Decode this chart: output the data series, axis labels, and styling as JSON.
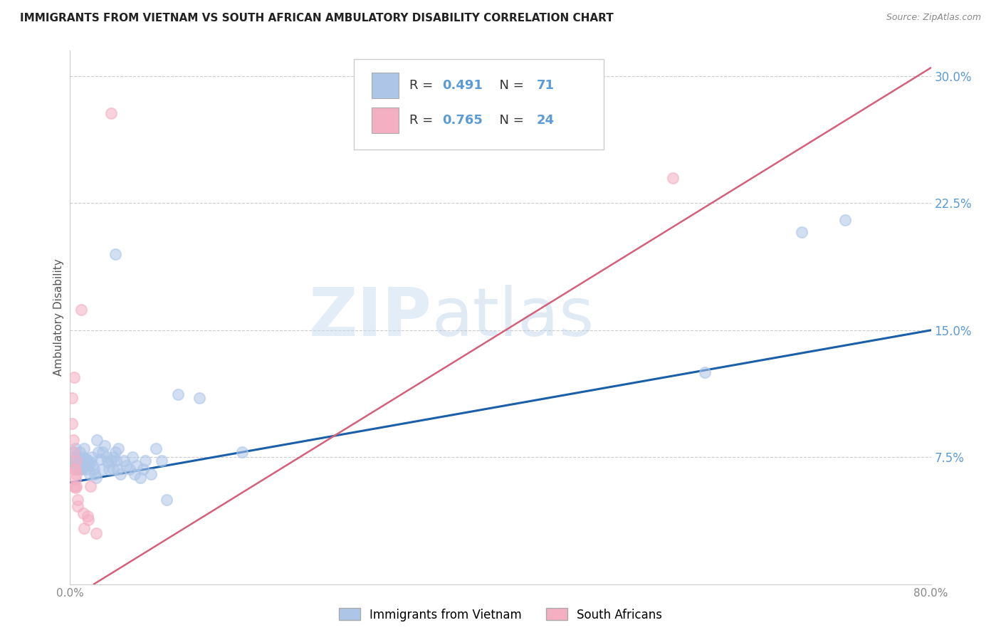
{
  "title": "IMMIGRANTS FROM VIETNAM VS SOUTH AFRICAN AMBULATORY DISABILITY CORRELATION CHART",
  "source": "Source: ZipAtlas.com",
  "ylabel": "Ambulatory Disability",
  "xmin": 0.0,
  "xmax": 0.8,
  "ymin": 0.0,
  "ymax": 0.315,
  "yticks": [
    0.075,
    0.15,
    0.225,
    0.3
  ],
  "ytick_labels": [
    "7.5%",
    "15.0%",
    "22.5%",
    "30.0%"
  ],
  "xticks": [
    0.0,
    0.2,
    0.4,
    0.6,
    0.8
  ],
  "xtick_labels": [
    "0.0%",
    "",
    "",
    "",
    "80.0%"
  ],
  "legend_top": [
    {
      "label_r": "R = ",
      "r_val": "0.491",
      "label_n": "  N = ",
      "n_val": "71",
      "color": "#adc6e8"
    },
    {
      "label_r": "R = ",
      "r_val": "0.765",
      "label_n": "  N = ",
      "n_val": "24",
      "color": "#f4afc3"
    }
  ],
  "legend_bottom": [
    {
      "label": "Immigrants from Vietnam",
      "color": "#adc6e8"
    },
    {
      "label": "South Africans",
      "color": "#f4afc3"
    }
  ],
  "blue_scatter": [
    [
      0.003,
      0.078
    ],
    [
      0.004,
      0.075
    ],
    [
      0.004,
      0.072
    ],
    [
      0.005,
      0.08
    ],
    [
      0.005,
      0.073
    ],
    [
      0.005,
      0.07
    ],
    [
      0.006,
      0.075
    ],
    [
      0.006,
      0.069
    ],
    [
      0.007,
      0.073
    ],
    [
      0.007,
      0.068
    ],
    [
      0.008,
      0.074
    ],
    [
      0.008,
      0.071
    ],
    [
      0.009,
      0.078
    ],
    [
      0.009,
      0.068
    ],
    [
      0.01,
      0.074
    ],
    [
      0.01,
      0.072
    ],
    [
      0.011,
      0.073
    ],
    [
      0.011,
      0.068
    ],
    [
      0.012,
      0.075
    ],
    [
      0.012,
      0.069
    ],
    [
      0.013,
      0.08
    ],
    [
      0.013,
      0.07
    ],
    [
      0.014,
      0.072
    ],
    [
      0.015,
      0.074
    ],
    [
      0.015,
      0.068
    ],
    [
      0.016,
      0.073
    ],
    [
      0.017,
      0.07
    ],
    [
      0.018,
      0.065
    ],
    [
      0.019,
      0.072
    ],
    [
      0.02,
      0.075
    ],
    [
      0.021,
      0.07
    ],
    [
      0.022,
      0.068
    ],
    [
      0.023,
      0.065
    ],
    [
      0.024,
      0.063
    ],
    [
      0.025,
      0.085
    ],
    [
      0.026,
      0.078
    ],
    [
      0.028,
      0.074
    ],
    [
      0.03,
      0.078
    ],
    [
      0.03,
      0.068
    ],
    [
      0.032,
      0.082
    ],
    [
      0.034,
      0.075
    ],
    [
      0.035,
      0.072
    ],
    [
      0.036,
      0.068
    ],
    [
      0.038,
      0.073
    ],
    [
      0.04,
      0.068
    ],
    [
      0.04,
      0.075
    ],
    [
      0.042,
      0.078
    ],
    [
      0.043,
      0.073
    ],
    [
      0.044,
      0.068
    ],
    [
      0.045,
      0.08
    ],
    [
      0.047,
      0.065
    ],
    [
      0.05,
      0.073
    ],
    [
      0.052,
      0.07
    ],
    [
      0.055,
      0.068
    ],
    [
      0.058,
      0.075
    ],
    [
      0.06,
      0.065
    ],
    [
      0.062,
      0.07
    ],
    [
      0.065,
      0.063
    ],
    [
      0.068,
      0.068
    ],
    [
      0.07,
      0.073
    ],
    [
      0.075,
      0.065
    ],
    [
      0.08,
      0.08
    ],
    [
      0.085,
      0.073
    ],
    [
      0.09,
      0.05
    ],
    [
      0.042,
      0.195
    ],
    [
      0.1,
      0.112
    ],
    [
      0.12,
      0.11
    ],
    [
      0.16,
      0.078
    ],
    [
      0.59,
      0.125
    ],
    [
      0.68,
      0.208
    ],
    [
      0.72,
      0.215
    ]
  ],
  "pink_scatter": [
    [
      0.002,
      0.11
    ],
    [
      0.002,
      0.095
    ],
    [
      0.003,
      0.085
    ],
    [
      0.003,
      0.078
    ],
    [
      0.004,
      0.122
    ],
    [
      0.004,
      0.068
    ],
    [
      0.004,
      0.058
    ],
    [
      0.005,
      0.068
    ],
    [
      0.005,
      0.062
    ],
    [
      0.005,
      0.057
    ],
    [
      0.006,
      0.073
    ],
    [
      0.006,
      0.065
    ],
    [
      0.006,
      0.058
    ],
    [
      0.007,
      0.05
    ],
    [
      0.007,
      0.046
    ],
    [
      0.01,
      0.162
    ],
    [
      0.012,
      0.042
    ],
    [
      0.013,
      0.033
    ],
    [
      0.016,
      0.04
    ],
    [
      0.017,
      0.038
    ],
    [
      0.019,
      0.058
    ],
    [
      0.024,
      0.03
    ],
    [
      0.038,
      0.278
    ],
    [
      0.56,
      0.24
    ]
  ],
  "blue_line": {
    "x0": 0.0,
    "y0": 0.06,
    "x1": 0.8,
    "y1": 0.15
  },
  "pink_line": {
    "x0": 0.022,
    "y0": 0.0,
    "x1": 0.8,
    "y1": 0.305
  },
  "blue_line_color": "#1a5fa8",
  "pink_line_color": "#d4607a",
  "scatter_blue_color": "#adc6e8",
  "scatter_pink_color": "#f4afc3",
  "watermark_zip": "ZIP",
  "watermark_atlas": "atlas",
  "background_color": "#ffffff",
  "grid_color": "#cccccc",
  "tick_color_y": "#5b9bd5",
  "tick_color_x": "#888888"
}
